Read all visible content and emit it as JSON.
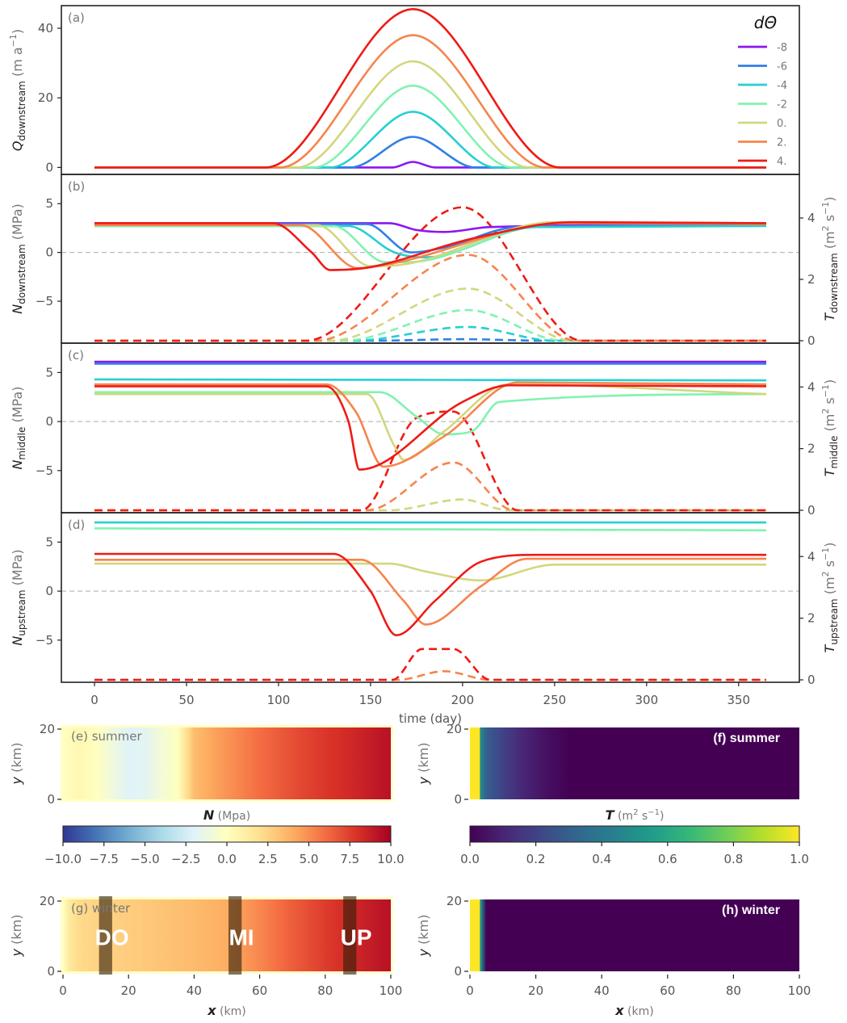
{
  "chart_data": [
    {
      "panel": "a",
      "type": "line",
      "panel_label": "(a)",
      "xlim": [
        -18,
        383
      ],
      "ylim": [
        -2,
        46.5
      ],
      "yticks": [
        0,
        20,
        40
      ],
      "ylabel": {
        "sym": "Q",
        "sub": "downstream",
        "unit": " (m a",
        "sup": "−1",
        "tail": ")"
      },
      "legend": {
        "title": "dΘ",
        "placement": "top-right",
        "entries": [
          "-8",
          "-6",
          "-4",
          "-2",
          "0.",
          "2.",
          "4."
        ]
      },
      "series": [
        {
          "dtheta": -8,
          "color": "#8b17f0",
          "x": [
            0,
            162,
            173,
            185,
            365
          ],
          "y": [
            0,
            0,
            1.6,
            0,
            0
          ]
        },
        {
          "dtheta": -6,
          "color": "#2f7fe8",
          "x": [
            0,
            139,
            173,
            207,
            365
          ],
          "y": [
            0,
            0,
            8.8,
            0,
            0
          ]
        },
        {
          "dtheta": -4,
          "color": "#27cfd3",
          "x": [
            0,
            128,
            173,
            218,
            365
          ],
          "y": [
            0,
            0,
            16,
            0,
            0
          ]
        },
        {
          "dtheta": -2,
          "color": "#80f3b0",
          "x": [
            0,
            119,
            173,
            227,
            365
          ],
          "y": [
            0,
            0,
            23.5,
            0,
            0
          ]
        },
        {
          "dtheta": 0,
          "color": "#d2d77e",
          "x": [
            0,
            110,
            173,
            236,
            365
          ],
          "y": [
            0,
            0,
            30.5,
            0,
            0
          ]
        },
        {
          "dtheta": 2,
          "color": "#f7844c",
          "x": [
            0,
            101,
            173,
            245,
            365
          ],
          "y": [
            0,
            0,
            38,
            0,
            0
          ]
        },
        {
          "dtheta": 4,
          "color": "#ee1b16",
          "x": [
            0,
            93,
            173,
            253,
            365
          ],
          "y": [
            0,
            0,
            45.5,
            0,
            0
          ]
        }
      ]
    },
    {
      "panel": "b",
      "type": "line",
      "panel_label": "(b)",
      "xlim": [
        -18,
        383
      ],
      "ylim": [
        -9.3,
        8.0
      ],
      "yticks": [
        -5,
        0,
        5
      ],
      "y2lim": [
        0,
        5.5
      ],
      "y2ticks": [
        0,
        2,
        4
      ],
      "ylabel": {
        "sym": "N",
        "sub": "downstream",
        "unit": " (MPa)"
      },
      "y2label": {
        "sym": "T",
        "sub": "downstream",
        "unit": " (m",
        "sup": "2",
        "tail": " s",
        "sup2": "−1",
        "tail2": ")"
      },
      "series_N": [
        {
          "color": "#8b17f0",
          "x": [
            0,
            160,
            175,
            190,
            215,
            365
          ],
          "y": [
            3.0,
            3.0,
            2.3,
            2.1,
            2.6,
            2.9
          ]
        },
        {
          "color": "#2f7fe8",
          "x": [
            0,
            148,
            172,
            190,
            230,
            365
          ],
          "y": [
            2.9,
            2.9,
            0.0,
            0.5,
            2.6,
            2.8
          ]
        },
        {
          "color": "#27cfd3",
          "x": [
            0,
            138,
            163,
            180,
            240,
            365
          ],
          "y": [
            2.7,
            2.7,
            0.0,
            -0.5,
            2.6,
            2.7
          ]
        },
        {
          "color": "#80f3b0",
          "x": [
            0,
            130,
            158,
            170,
            250,
            365
          ],
          "y": [
            2.7,
            2.7,
            -1.0,
            -1.0,
            3.1,
            3.0
          ]
        },
        {
          "color": "#d2d77e",
          "x": [
            0,
            121,
            150,
            165,
            250,
            365
          ],
          "y": [
            2.8,
            2.8,
            -1.4,
            -1.3,
            3.1,
            2.9
          ]
        },
        {
          "color": "#f7844c",
          "x": [
            0,
            112,
            143,
            160,
            255,
            365
          ],
          "y": [
            2.8,
            2.8,
            -1.6,
            -1.2,
            3.0,
            2.9
          ]
        },
        {
          "color": "#ee1b16",
          "x": [
            0,
            97,
            118,
            128,
            150,
            205,
            260,
            365
          ],
          "y": [
            3.0,
            3.0,
            0.0,
            -1.8,
            -1.5,
            1.4,
            3.1,
            3.0
          ]
        }
      ],
      "series_T": [
        {
          "color": "#2f7fe8",
          "x": [
            0,
            150,
            200,
            245,
            365
          ],
          "y": [
            0,
            0,
            0.05,
            0,
            0
          ]
        },
        {
          "color": "#27cfd3",
          "x": [
            0,
            140,
            203,
            250,
            365
          ],
          "y": [
            0,
            0,
            0.45,
            0,
            0
          ]
        },
        {
          "color": "#80f3b0",
          "x": [
            0,
            135,
            203,
            255,
            365
          ],
          "y": [
            0,
            0,
            1.0,
            0,
            0
          ]
        },
        {
          "color": "#d2d77e",
          "x": [
            0,
            128,
            203,
            260,
            365
          ],
          "y": [
            0,
            0,
            1.7,
            0,
            0
          ]
        },
        {
          "color": "#f7844c",
          "x": [
            0,
            120,
            203,
            262,
            365
          ],
          "y": [
            0,
            0,
            2.8,
            0,
            0
          ]
        },
        {
          "color": "#ee1b16",
          "x": [
            0,
            115,
            200,
            265,
            365
          ],
          "y": [
            0,
            0,
            4.35,
            0,
            0
          ]
        }
      ]
    },
    {
      "panel": "c",
      "type": "line",
      "panel_label": "(c)",
      "xlim": [
        -18,
        383
      ],
      "ylim": [
        -9.3,
        8.0
      ],
      "yticks": [
        -5,
        0,
        5
      ],
      "y2lim": [
        0,
        5.5
      ],
      "y2ticks": [
        0,
        2,
        4
      ],
      "ylabel": {
        "sym": "N",
        "sub": "middle",
        "unit": " (MPa)"
      },
      "y2label": {
        "sym": "T",
        "sub": "middle",
        "unit": " (m",
        "sup": "2",
        "tail": " s",
        "sup2": "−1",
        "tail2": ")"
      },
      "series_N": [
        {
          "color": "#8b17f0",
          "x": [
            0,
            365
          ],
          "y": [
            6.1,
            6.1
          ]
        },
        {
          "color": "#2f7fe8",
          "x": [
            0,
            365
          ],
          "y": [
            5.9,
            5.9
          ]
        },
        {
          "color": "#27cfd3",
          "x": [
            0,
            365
          ],
          "y": [
            4.3,
            4.2
          ]
        },
        {
          "color": "#80f3b0",
          "x": [
            0,
            155,
            175,
            190,
            205,
            220,
            365
          ],
          "y": [
            3.0,
            3.0,
            0.5,
            -1.3,
            -1.0,
            2.0,
            2.8
          ]
        },
        {
          "color": "#d2d77e",
          "x": [
            0,
            148,
            163,
            168,
            190,
            225,
            365
          ],
          "y": [
            2.8,
            2.8,
            -2.5,
            -3.9,
            -1.0,
            3.8,
            2.8
          ]
        },
        {
          "color": "#f7844c",
          "x": [
            0,
            126,
            142,
            157,
            190,
            230,
            365
          ],
          "y": [
            3.8,
            3.8,
            1.0,
            -4.6,
            -1.5,
            4.0,
            3.8
          ]
        },
        {
          "color": "#ee1b16",
          "x": [
            0,
            126,
            138,
            144,
            200,
            225,
            365
          ],
          "y": [
            3.6,
            3.6,
            0.0,
            -4.9,
            2.0,
            3.7,
            3.6
          ]
        }
      ],
      "series_T": [
        {
          "color": "#d2d77e",
          "x": [
            0,
            160,
            200,
            225,
            365
          ],
          "y": [
            0,
            0,
            0.35,
            0,
            0
          ]
        },
        {
          "color": "#f7844c",
          "x": [
            0,
            148,
            195,
            228,
            365
          ],
          "y": [
            0,
            0,
            1.55,
            0,
            0
          ]
        },
        {
          "color": "#ee1b16",
          "x": [
            0,
            145,
            175,
            195,
            230,
            365
          ],
          "y": [
            0,
            0,
            3.0,
            3.2,
            0,
            0
          ]
        }
      ]
    },
    {
      "panel": "d",
      "type": "line",
      "panel_label": "(d)",
      "xlim": [
        -18,
        383
      ],
      "ylim": [
        -9.3,
        8.0
      ],
      "yticks": [
        -5,
        0,
        5
      ],
      "y2lim": [
        0,
        5.5
      ],
      "y2ticks": [
        0,
        2,
        4
      ],
      "xticks": [
        0,
        50,
        100,
        150,
        200,
        250,
        300,
        350
      ],
      "xlabel": "time (day)",
      "ylabel": {
        "sym": "N",
        "sub": "upstream",
        "unit": " (MPa)"
      },
      "y2label": {
        "sym": "T",
        "sub": "upstream",
        "unit": " (m",
        "sup": "2",
        "tail": " s",
        "sup2": "−1",
        "tail2": ")"
      },
      "series_N": [
        {
          "color": "#27cfd3",
          "x": [
            0,
            365
          ],
          "y": [
            7.0,
            7.0
          ]
        },
        {
          "color": "#80f3b0",
          "x": [
            0,
            365
          ],
          "y": [
            6.4,
            6.2
          ]
        },
        {
          "color": "#d2d77e",
          "x": [
            0,
            160,
            180,
            210,
            250,
            365
          ],
          "y": [
            2.8,
            2.8,
            2.0,
            1.1,
            2.7,
            2.7
          ]
        },
        {
          "color": "#f7844c",
          "x": [
            0,
            145,
            168,
            180,
            210,
            235,
            365
          ],
          "y": [
            3.2,
            3.2,
            -1.0,
            -3.4,
            0.5,
            3.3,
            3.3
          ]
        },
        {
          "color": "#ee1b16",
          "x": [
            0,
            130,
            150,
            164,
            185,
            210,
            240,
            365
          ],
          "y": [
            3.8,
            3.8,
            0.0,
            -4.5,
            -1.0,
            3.0,
            3.7,
            3.7
          ]
        }
      ],
      "series_T": [
        {
          "color": "#f7844c",
          "x": [
            0,
            165,
            190,
            215,
            365
          ],
          "y": [
            0,
            0,
            0.28,
            0,
            0
          ]
        },
        {
          "color": "#ee1b16",
          "x": [
            0,
            162,
            178,
            195,
            215,
            365
          ],
          "y": [
            0,
            0,
            1.0,
            1.0,
            0,
            0
          ]
        }
      ]
    },
    {
      "panel": "e",
      "type": "heatmap",
      "panel_label": "(e) summer",
      "xlim": [
        0,
        100
      ],
      "ylim": [
        0,
        20
      ],
      "yticks": [
        0,
        20
      ],
      "ylabel": {
        "sym": "y",
        "unit": " (km)"
      },
      "profile_x": [
        0,
        5,
        10,
        15,
        20,
        25,
        30,
        35,
        40,
        45,
        50,
        55,
        60,
        65,
        70,
        75,
        80,
        85,
        90,
        95,
        100
      ],
      "profile_N": [
        0.0,
        0.5,
        0.0,
        -1.0,
        -2.0,
        -1.8,
        -0.8,
        0.0,
        3.4,
        4.2,
        4.8,
        5.4,
        6.0,
        6.5,
        7.0,
        7.4,
        7.8,
        8.1,
        8.5,
        8.9,
        9.3
      ]
    },
    {
      "panel": "f",
      "type": "heatmap",
      "panel_label": "(f) summer",
      "xlim": [
        0,
        100
      ],
      "ylim": [
        0,
        20
      ],
      "yticks": [
        0,
        20
      ],
      "ylabel": {
        "sym": "y",
        "unit": " (km)"
      },
      "profile_x": [
        0,
        2,
        3,
        5,
        10,
        15,
        20,
        25,
        30,
        100
      ],
      "profile_T": [
        1.0,
        1.0,
        0.5,
        0.3,
        0.2,
        0.12,
        0.07,
        0.03,
        0.0,
        0.0
      ]
    },
    {
      "panel": "g",
      "type": "heatmap",
      "panel_label": "(g) winter",
      "xlim": [
        0,
        100
      ],
      "ylim": [
        0,
        20
      ],
      "yticks": [
        0,
        20
      ],
      "xticks": [
        0,
        20,
        40,
        60,
        80,
        100
      ],
      "xlabel": {
        "sym": "x",
        "unit": " (km)"
      },
      "ylabel": {
        "sym": "y",
        "unit": " (km)"
      },
      "profile_x": [
        0,
        2,
        5,
        10,
        20,
        30,
        40,
        50,
        60,
        70,
        80,
        90,
        100
      ],
      "profile_N": [
        0.0,
        1.5,
        2.2,
        2.5,
        2.8,
        3.1,
        3.5,
        4.0,
        5.2,
        6.5,
        7.6,
        8.5,
        9.3
      ],
      "regions": [
        {
          "label": "DO",
          "x": [
            11,
            15
          ]
        },
        {
          "label": "MI",
          "x": [
            50.5,
            54.5
          ]
        },
        {
          "label": "UP",
          "x": [
            85.5,
            89.5
          ]
        }
      ]
    },
    {
      "panel": "h",
      "type": "heatmap",
      "panel_label": "(h) winter",
      "xlim": [
        0,
        100
      ],
      "ylim": [
        0,
        20
      ],
      "yticks": [
        0,
        20
      ],
      "xticks": [
        0,
        20,
        40,
        60,
        80,
        100
      ],
      "xlabel": {
        "sym": "x",
        "unit": " (km)"
      },
      "ylabel": {
        "sym": "y",
        "unit": " (km)"
      },
      "profile_x": [
        0,
        2,
        3,
        4,
        5,
        100
      ],
      "profile_T": [
        1.0,
        1.0,
        0.6,
        0.3,
        0.0,
        0.0
      ]
    },
    {
      "type": "colorbar",
      "label": {
        "sym": "N",
        "unit": " (Mpa)"
      },
      "range": [
        -10,
        10
      ],
      "ticks": [
        "−10.0",
        "−7.5",
        "−5.0",
        "−2.5",
        "0.0",
        "2.5",
        "5.0",
        "7.5",
        "10.0"
      ],
      "colormap": "RdYlBu_r"
    },
    {
      "type": "colorbar",
      "label": {
        "sym": "T",
        "unit": " (m",
        "sup": "2",
        "tail": " s",
        "sup2": "−1",
        "tail2": ")"
      },
      "range": [
        0,
        1
      ],
      "ticks": [
        "0.0",
        "0.2",
        "0.4",
        "0.6",
        "0.8",
        "1.0"
      ],
      "colormap": "viridis"
    }
  ]
}
